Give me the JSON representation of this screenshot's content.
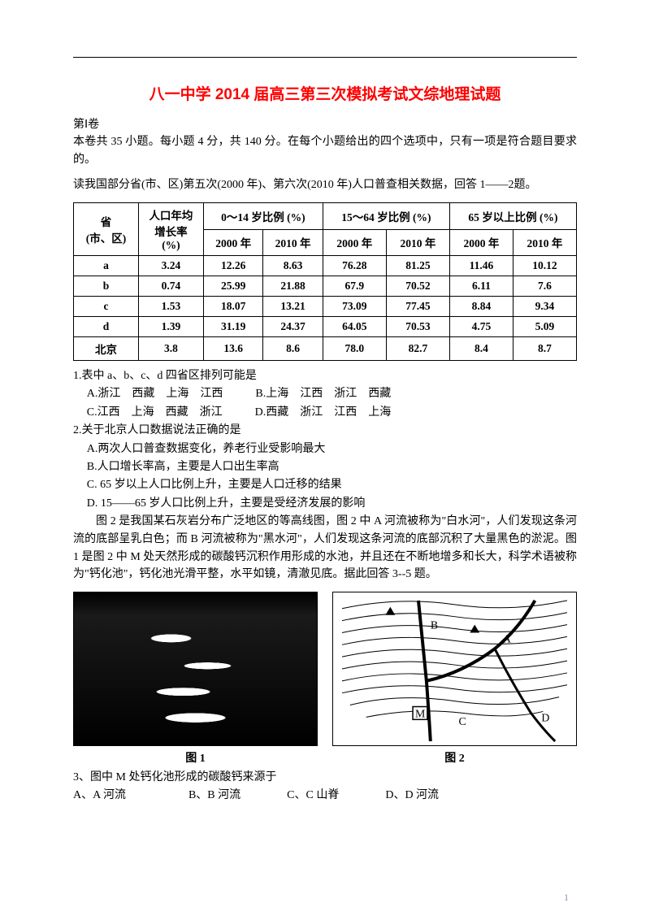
{
  "title": "八一中学 2014 届高三第三次模拟考试文综地理试题",
  "section": "第Ⅰ卷",
  "intro": "本卷共 35 小题。每小题 4 分，共 140 分。在每个小题给出的四个选项中，只有一项是符合题目要求的。",
  "lead12": "读我国部分省(市、区)第五次(2000 年)、第六次(2010 年)人口普查相关数据，回答 1——2题。",
  "table": {
    "head_rowspan_left": "省\n(市、区)",
    "head_growth": "人口年均\n增长率\n(%)",
    "head_0_14": "0～14 岁比例 (%)",
    "head_15_64": "15～64 岁比例 (%)",
    "head_65": "65 岁以上比例 (%)",
    "y2000": "2000 年",
    "y2010": "2010 年",
    "rows": [
      {
        "p": "a",
        "g": "3.24",
        "a1": "12.26",
        "a2": "8.63",
        "b1": "76.28",
        "b2": "81.25",
        "c1": "11.46",
        "c2": "10.12"
      },
      {
        "p": "b",
        "g": "0.74",
        "a1": "25.99",
        "a2": "21.88",
        "b1": "67.9",
        "b2": "70.52",
        "c1": "6.11",
        "c2": "7.6"
      },
      {
        "p": "c",
        "g": "1.53",
        "a1": "18.07",
        "a2": "13.21",
        "b1": "73.09",
        "b2": "77.45",
        "c1": "8.84",
        "c2": "9.34"
      },
      {
        "p": "d",
        "g": "1.39",
        "a1": "31.19",
        "a2": "24.37",
        "b1": "64.05",
        "b2": "70.53",
        "c1": "4.75",
        "c2": "5.09"
      },
      {
        "p": "北京",
        "g": "3.8",
        "a1": "13.6",
        "a2": "8.6",
        "b1": "78.0",
        "b2": "82.7",
        "c1": "8.4",
        "c2": "8.7"
      }
    ]
  },
  "q1": {
    "stem": "1.表中 a、b、c、d 四省区排列可能是",
    "opts": {
      "A": "A.浙江　西藏　上海　江西",
      "B": "B.上海　江西　浙江　西藏",
      "C": "C.江西　上海　西藏　浙江",
      "D": "D.西藏　浙江　江西　上海"
    }
  },
  "q2": {
    "stem": "2.关于北京人口数据说法正确的是",
    "opts": {
      "A": "A.两次人口普查数据变化，养老行业受影响最大",
      "B": "B.人口增长率高，主要是人口出生率高",
      "C": "C. 65 岁以上人口比例上升，主要是人口迁移的结果",
      "D": "D. 15——65 岁人口比例上升，主要是受经济发展的影响"
    }
  },
  "lead35": "图 2 是我国某石灰岩分布广泛地区的等高线图，图 2 中 A 河流被称为\"白水河\"，人们发现这条河流的底部呈乳白色；而 B 河流被称为\"黑水河\"，人们发现这条河流的底部沉积了大量黑色的淤泥。图 1 是图 2 中 M 处天然形成的碳酸钙沉积作用形成的水池，并且还在不断地增多和长大，科学术语被称为\"钙化池\"，钙化池光滑平整，水平如镜，清澈见底。据此回答 3--5 题。",
  "fig1": {
    "caption": "图 1"
  },
  "fig2": {
    "caption": "图 2",
    "labels": {
      "A": "A",
      "B": "B",
      "C": "C",
      "D": "D",
      "M": "M"
    }
  },
  "q3": {
    "stem": "3、图中 M 处钙化池形成的碳酸钙来源于",
    "opts": {
      "A": "A、A 河流",
      "B": "B、B 河流",
      "C": "C、C 山脊",
      "D": "D、D 河流"
    }
  },
  "pagenum": "1"
}
